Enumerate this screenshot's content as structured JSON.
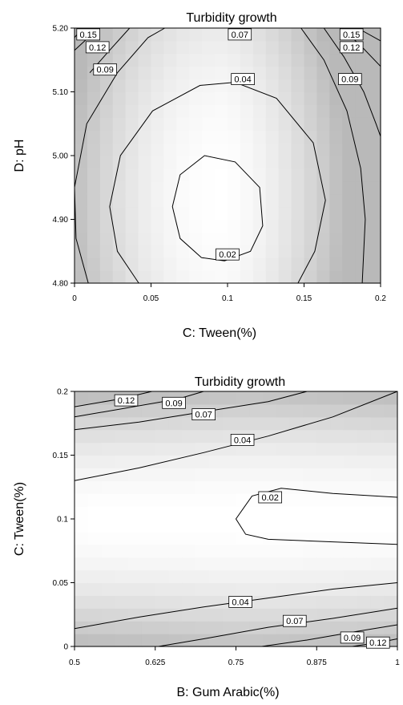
{
  "chart_data": [
    {
      "type": "contour",
      "title": "Turbidity growth",
      "xlabel": "C: Tween(%)",
      "ylabel": "D: pH",
      "xlim": [
        0,
        0.2
      ],
      "ylim": [
        4.8,
        5.2
      ],
      "x_ticks": [
        "0",
        "0.05",
        "0.1",
        "0.15",
        "0.2"
      ],
      "y_ticks": [
        "4.80",
        "4.90",
        "5.00",
        "5.10",
        "5.20"
      ],
      "grid": false,
      "shading": "grayscale",
      "contours": [
        {
          "level": "0.02",
          "points": [
            [
              0.083,
              4.84
            ],
            [
              0.069,
              4.87
            ],
            [
              0.064,
              4.92
            ],
            [
              0.069,
              4.97
            ],
            [
              0.085,
              5.0
            ],
            [
              0.105,
              4.99
            ],
            [
              0.121,
              4.95
            ],
            [
              0.123,
              4.89
            ],
            [
              0.115,
              4.85
            ],
            [
              0.098,
              4.835
            ],
            [
              0.083,
              4.84
            ]
          ],
          "label_at": [
            0.1,
            4.845
          ]
        },
        {
          "level": "0.04",
          "points": [
            [
              0.042,
              4.8
            ],
            [
              0.028,
              4.85
            ],
            [
              0.023,
              4.92
            ],
            [
              0.03,
              5.0
            ],
            [
              0.051,
              5.07
            ],
            [
              0.082,
              5.11
            ],
            [
              0.105,
              5.115
            ],
            [
              0.132,
              5.09
            ],
            [
              0.156,
              5.02
            ],
            [
              0.164,
              4.93
            ],
            [
              0.157,
              4.85
            ],
            [
              0.146,
              4.8
            ]
          ],
          "label_at": [
            0.11,
            5.12
          ]
        },
        {
          "level": "0.07",
          "points": [
            [
              0.009,
              4.8
            ],
            [
              0.001,
              4.87
            ],
            [
              0.0,
              4.95
            ],
            [
              0.008,
              5.05
            ],
            [
              0.028,
              5.13
            ],
            [
              0.048,
              5.185
            ],
            [
              0.059,
              5.2
            ]
          ],
          "label_at": [
            0.108,
            5.19
          ]
        },
        {
          "level": "0.07",
          "points": [
            [
              0.148,
              5.2
            ],
            [
              0.163,
              5.15
            ],
            [
              0.178,
              5.07
            ],
            [
              0.187,
              4.98
            ],
            [
              0.19,
              4.9
            ],
            [
              0.188,
              4.8
            ]
          ],
          "label_at": null
        },
        {
          "level": "0.09",
          "points": [
            [
              0.01,
              5.13
            ],
            [
              0.021,
              5.16
            ],
            [
              0.036,
              5.2
            ]
          ],
          "label_at": [
            0.02,
            5.135
          ]
        },
        {
          "level": "0.09",
          "points": [
            [
              0.163,
              5.2
            ],
            [
              0.176,
              5.155
            ],
            [
              0.189,
              5.1
            ],
            [
              0.197,
              5.05
            ],
            [
              0.2,
              5.03
            ]
          ],
          "label_at": [
            0.18,
            5.12
          ]
        },
        {
          "level": "0.12",
          "points": [
            [
              0.0,
              5.165
            ],
            [
              0.009,
              5.185
            ],
            [
              0.015,
              5.2
            ]
          ],
          "label_at": [
            0.015,
            5.17
          ]
        },
        {
          "level": "0.12",
          "points": [
            [
              0.174,
              5.2
            ],
            [
              0.186,
              5.175
            ],
            [
              0.2,
              5.14
            ]
          ],
          "label_at": [
            0.181,
            5.17
          ]
        },
        {
          "level": "0.15",
          "points": [
            [
              0.0,
              5.185
            ],
            [
              0.005,
              5.2
            ]
          ],
          "label_at": [
            0.009,
            5.19
          ]
        },
        {
          "level": "0.15",
          "points": [
            [
              0.185,
              5.2
            ],
            [
              0.2,
              5.18
            ]
          ],
          "label_at": [
            0.181,
            5.19
          ]
        }
      ]
    },
    {
      "type": "contour",
      "title": "Turbidity growth",
      "xlabel": "B: Gum Arabic(%)",
      "ylabel": "C: Tween(%)",
      "xlim": [
        0.5,
        1
      ],
      "ylim": [
        0,
        0.2
      ],
      "x_ticks": [
        "0.5",
        "0.625",
        "0.75",
        "0.875",
        "1"
      ],
      "y_ticks": [
        "0",
        "0.05",
        "0.1",
        "0.15",
        "0.2"
      ],
      "grid": false,
      "shading": "grayscale",
      "contours": [
        {
          "level": "0.12",
          "points": [
            [
              0.5,
              0.188
            ],
            [
              0.57,
              0.194
            ],
            [
              0.62,
              0.2
            ]
          ],
          "label_at": [
            0.58,
            0.193
          ]
        },
        {
          "level": "0.09",
          "points": [
            [
              0.5,
              0.18
            ],
            [
              0.58,
              0.187
            ],
            [
              0.66,
              0.194
            ],
            [
              0.7,
              0.2
            ]
          ],
          "label_at": [
            0.654,
            0.191
          ]
        },
        {
          "level": "0.07",
          "points": [
            [
              0.5,
              0.17
            ],
            [
              0.6,
              0.176
            ],
            [
              0.7,
              0.184
            ],
            [
              0.8,
              0.192
            ],
            [
              0.86,
              0.2
            ]
          ],
          "label_at": [
            0.7,
            0.182
          ]
        },
        {
          "level": "0.04",
          "points": [
            [
              0.5,
              0.13
            ],
            [
              0.6,
              0.14
            ],
            [
              0.7,
              0.152
            ],
            [
              0.8,
              0.165
            ],
            [
              0.9,
              0.18
            ],
            [
              1.0,
              0.2
            ]
          ],
          "label_at": [
            0.76,
            0.162
          ]
        },
        {
          "level": "0.02",
          "points": [
            [
              1.0,
              0.117
            ],
            [
              0.9,
              0.12
            ],
            [
              0.82,
              0.124
            ],
            [
              0.775,
              0.118
            ],
            [
              0.75,
              0.1
            ],
            [
              0.765,
              0.088
            ],
            [
              0.8,
              0.084
            ],
            [
              0.9,
              0.082
            ],
            [
              1.0,
              0.08
            ]
          ],
          "label_at": [
            0.803,
            0.117
          ]
        },
        {
          "level": "0.04",
          "points": [
            [
              0.5,
              0.014
            ],
            [
              0.6,
              0.023
            ],
            [
              0.7,
              0.031
            ],
            [
              0.8,
              0.038
            ],
            [
              0.9,
              0.045
            ],
            [
              1.0,
              0.05
            ]
          ],
          "label_at": [
            0.757,
            0.035
          ]
        },
        {
          "level": "0.07",
          "points": [
            [
              0.63,
              0.0
            ],
            [
              0.7,
              0.006
            ],
            [
              0.8,
              0.015
            ],
            [
              0.9,
              0.022
            ],
            [
              1.0,
              0.03
            ]
          ],
          "label_at": [
            0.841,
            0.02
          ]
        },
        {
          "level": "0.09",
          "points": [
            [
              0.79,
              0.0
            ],
            [
              0.86,
              0.005
            ],
            [
              0.94,
              0.012
            ],
            [
              1.0,
              0.017
            ]
          ],
          "label_at": [
            0.93,
            0.007
          ]
        },
        {
          "level": "0.12",
          "points": [
            [
              0.93,
              0.0
            ],
            [
              0.97,
              0.003
            ],
            [
              1.0,
              0.006
            ]
          ],
          "label_at": [
            0.97,
            0.003
          ]
        }
      ]
    }
  ]
}
